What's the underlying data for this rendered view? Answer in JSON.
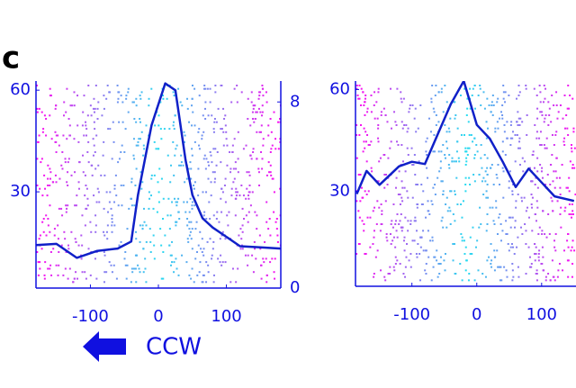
{
  "panel_label": "c",
  "direction_label": "CCW",
  "chart_data": [
    {
      "type": "raster-line",
      "color": "#1020c8",
      "xlim": [
        -180,
        180
      ],
      "xticks": [
        -100,
        0,
        100
      ],
      "ylim": [
        1.6,
        62.7
      ],
      "yticks": [
        30,
        60
      ],
      "y2lim": [
        0,
        8.9
      ],
      "y2ticks": [
        0,
        8
      ],
      "series": [
        {
          "axis": "y2",
          "x": [
            -180,
            -150,
            -120,
            -90,
            -60,
            -40,
            -30,
            -10,
            10,
            25,
            40,
            50,
            65,
            80,
            100,
            120,
            150,
            180
          ],
          "values": [
            1.85,
            1.9,
            1.3,
            1.6,
            1.7,
            2,
            4,
            7,
            8.8,
            8.5,
            5.5,
            4,
            3,
            2.6,
            2.2,
            1.8,
            1.75,
            1.7
          ]
        }
      ]
    },
    {
      "type": "raster-line",
      "color": "#1020c8",
      "xlim": [
        -187,
        153
      ],
      "xticks": [
        -100,
        0,
        100
      ],
      "ylim": [
        2,
        62.5
      ],
      "yticks": [
        30,
        60
      ],
      "y2lim": [
        0,
        8.9
      ],
      "series": [
        {
          "axis": "y2",
          "x": [
            -185,
            -170,
            -150,
            -120,
            -100,
            -80,
            -60,
            -40,
            -20,
            0,
            20,
            40,
            60,
            80,
            100,
            120,
            150
          ],
          "values": [
            4.0,
            5.0,
            4.4,
            5.2,
            5.4,
            5.3,
            6.6,
            7.9,
            8.9,
            7.0,
            6.4,
            5.4,
            4.3,
            5.1,
            4.5,
            3.9,
            3.7
          ]
        }
      ]
    }
  ]
}
